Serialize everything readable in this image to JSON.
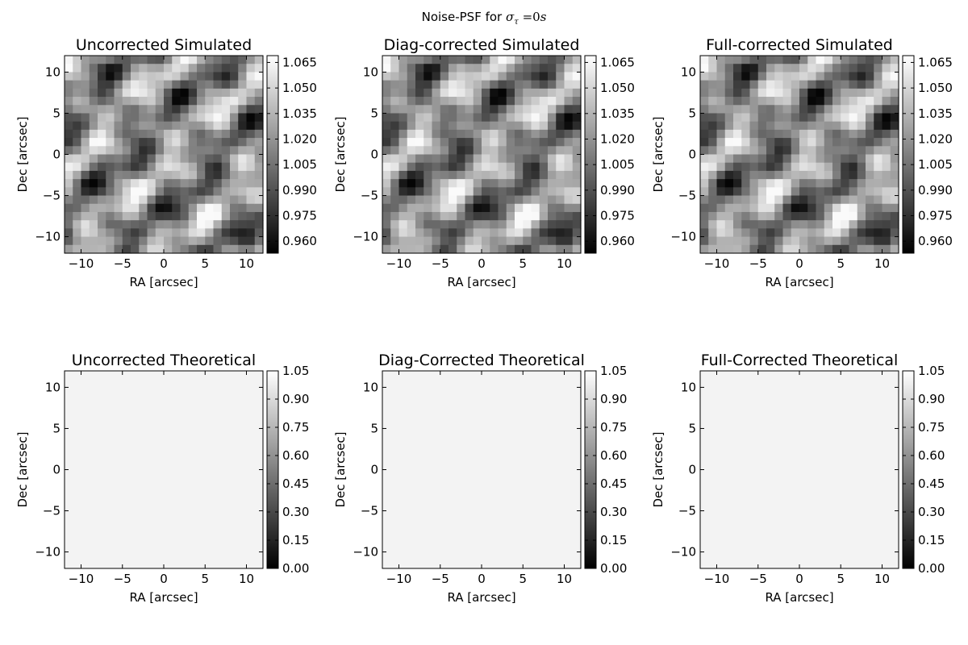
{
  "figure": {
    "suptitle_prefix": "Noise-PSF for ",
    "suptitle_math": "σ",
    "suptitle_sub": "τ",
    "suptitle_rest": " =0",
    "suptitle_unit": "s"
  },
  "chart_data": [
    {
      "type": "heatmap",
      "title": "Uncorrected Simulated",
      "xlabel": "RA [arcsec]",
      "ylabel": "Dec [arcsec]",
      "xlim": [
        -12,
        12
      ],
      "ylim": [
        -12,
        12
      ],
      "xticks": [
        -10,
        -5,
        0,
        5,
        10
      ],
      "yticks": [
        -10,
        -5,
        0,
        5,
        10
      ],
      "colormap": "gray",
      "vmin": 0.953,
      "vmax": 1.069,
      "colorbar_ticks": [
        "0.960",
        "0.975",
        "0.990",
        "1.005",
        "1.020",
        "1.035",
        "1.050",
        "1.065"
      ],
      "colorbar_values": [
        0.96,
        0.975,
        0.99,
        1.005,
        1.02,
        1.035,
        1.05,
        1.065
      ],
      "grid_size": 24,
      "pattern": "noise"
    },
    {
      "type": "heatmap",
      "title": "Diag-corrected Simulated",
      "xlabel": "RA [arcsec]",
      "ylabel": "Dec [arcsec]",
      "xlim": [
        -12,
        12
      ],
      "ylim": [
        -12,
        12
      ],
      "xticks": [
        -10,
        -5,
        0,
        5,
        10
      ],
      "yticks": [
        -10,
        -5,
        0,
        5,
        10
      ],
      "colormap": "gray",
      "vmin": 0.953,
      "vmax": 1.069,
      "colorbar_ticks": [
        "0.960",
        "0.975",
        "0.990",
        "1.005",
        "1.020",
        "1.035",
        "1.050",
        "1.065"
      ],
      "colorbar_values": [
        0.96,
        0.975,
        0.99,
        1.005,
        1.02,
        1.035,
        1.05,
        1.065
      ],
      "grid_size": 24,
      "pattern": "noise"
    },
    {
      "type": "heatmap",
      "title": "Full-corrected Simulated",
      "xlabel": "RA [arcsec]",
      "ylabel": "Dec [arcsec]",
      "xlim": [
        -12,
        12
      ],
      "ylim": [
        -12,
        12
      ],
      "xticks": [
        -10,
        -5,
        0,
        5,
        10
      ],
      "yticks": [
        -10,
        -5,
        0,
        5,
        10
      ],
      "colormap": "gray",
      "vmin": 0.953,
      "vmax": 1.069,
      "colorbar_ticks": [
        "0.960",
        "0.975",
        "0.990",
        "1.005",
        "1.020",
        "1.035",
        "1.050",
        "1.065"
      ],
      "colorbar_values": [
        0.96,
        0.975,
        0.99,
        1.005,
        1.02,
        1.035,
        1.05,
        1.065
      ],
      "grid_size": 24,
      "pattern": "noise"
    },
    {
      "type": "heatmap",
      "title": "Uncorrected Theoretical",
      "xlabel": "RA [arcsec]",
      "ylabel": "Dec [arcsec]",
      "xlim": [
        -12,
        12
      ],
      "ylim": [
        -12,
        12
      ],
      "xticks": [
        -10,
        -5,
        0,
        5,
        10
      ],
      "yticks": [
        -10,
        -5,
        0,
        5,
        10
      ],
      "colormap": "gray",
      "vmin": 0.0,
      "vmax": 1.05,
      "colorbar_ticks": [
        "0.00",
        "0.15",
        "0.30",
        "0.45",
        "0.60",
        "0.75",
        "0.90",
        "1.05"
      ],
      "colorbar_values": [
        0.0,
        0.15,
        0.3,
        0.45,
        0.6,
        0.75,
        0.9,
        1.05
      ],
      "uniform_value": 1.0,
      "pattern": "uniform"
    },
    {
      "type": "heatmap",
      "title": "Diag-Corrected Theoretical",
      "xlabel": "RA [arcsec]",
      "ylabel": "Dec [arcsec]",
      "xlim": [
        -12,
        12
      ],
      "ylim": [
        -12,
        12
      ],
      "xticks": [
        -10,
        -5,
        0,
        5,
        10
      ],
      "yticks": [
        -10,
        -5,
        0,
        5,
        10
      ],
      "colormap": "gray",
      "vmin": 0.0,
      "vmax": 1.05,
      "colorbar_ticks": [
        "0.00",
        "0.15",
        "0.30",
        "0.45",
        "0.60",
        "0.75",
        "0.90",
        "1.05"
      ],
      "colorbar_values": [
        0.0,
        0.15,
        0.3,
        0.45,
        0.6,
        0.75,
        0.9,
        1.05
      ],
      "uniform_value": 1.0,
      "pattern": "uniform"
    },
    {
      "type": "heatmap",
      "title": "Full-Corrected Theoretical",
      "xlabel": "RA [arcsec]",
      "ylabel": "Dec [arcsec]",
      "xlim": [
        -12,
        12
      ],
      "ylim": [
        -12,
        12
      ],
      "xticks": [
        -10,
        -5,
        0,
        5,
        10
      ],
      "yticks": [
        -10,
        -5,
        0,
        5,
        10
      ],
      "colormap": "gray",
      "vmin": 0.0,
      "vmax": 1.05,
      "colorbar_ticks": [
        "0.00",
        "0.15",
        "0.30",
        "0.45",
        "0.60",
        "0.75",
        "0.90",
        "1.05"
      ],
      "colorbar_values": [
        0.0,
        0.15,
        0.3,
        0.45,
        0.6,
        0.75,
        0.9,
        1.05
      ],
      "uniform_value": 1.0,
      "pattern": "uniform"
    }
  ]
}
